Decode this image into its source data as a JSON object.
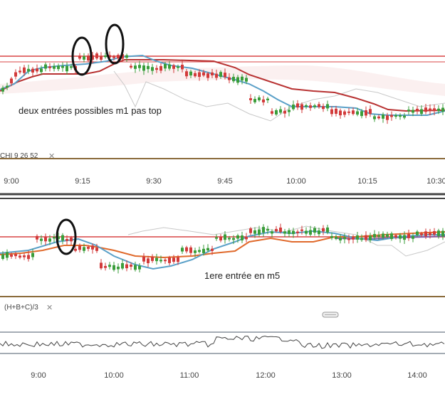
{
  "colors": {
    "bull": "#3a9d3a",
    "bear": "#d23a3a",
    "resistance": "#d94545",
    "tenkan": "#5aa0c8",
    "kijun_top": "#b83232",
    "kijun_bottom": "#e06a2c",
    "purple": "#7a5ca8",
    "cloud_line": "#c8c8c8",
    "separator": "#8a6a3a",
    "annotation": "#111111"
  },
  "top_panel": {
    "annotation_text": "deux entrées possibles m1 pas top",
    "indicator_label": "CHI  9  26  52",
    "close_symbol": "✕",
    "time_ticks": [
      "9:00",
      "9:15",
      "9:30",
      "9:45",
      "10:00",
      "10:15",
      "10:30"
    ]
  },
  "bottom_panel": {
    "annotation_text": "1ere entrée en m5",
    "indicator_label": "(H+B+C)/3",
    "close_symbol": "✕",
    "time_ticks": [
      "9:00",
      "10:00",
      "11:00",
      "12:00",
      "13:00",
      "14:00"
    ]
  },
  "icons": {
    "close": "close-icon",
    "scroll_handle": "scroll-handle-icon"
  }
}
